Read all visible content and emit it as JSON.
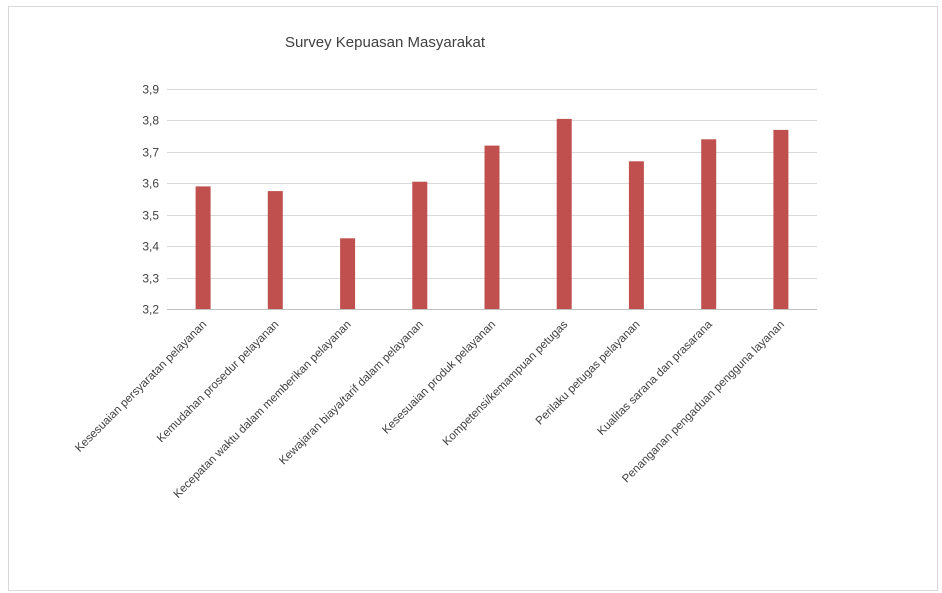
{
  "chart_data": {
    "type": "bar",
    "title": "Survey Kepuasan Masyarakat",
    "xlabel": "",
    "ylabel": "",
    "categories": [
      "Kesesuaian persyaratan pelayanan",
      "Kemudahan prosedur pelayanan",
      "Kecepatan waktu dalam memberikan pelayanan",
      "Kewajaran biaya/tarif dalam pelayanan",
      "Kesesuaian produk pelayanan",
      "Kompetensi/kemampuan petugas",
      "Perilaku petugas pelayanan",
      "Kualitas sarana dan prasarana",
      "Penanganan pengaduan pengguna layanan"
    ],
    "values": [
      3.59,
      3.575,
      3.425,
      3.605,
      3.72,
      3.805,
      3.67,
      3.74,
      3.77
    ],
    "ylim": [
      3.2,
      3.9
    ],
    "yticks": [
      "3,2",
      "3,3",
      "3,4",
      "3,5",
      "3,6",
      "3,7",
      "3,8",
      "3,9"
    ],
    "grid": true,
    "legend": "none",
    "bar_color": "#c0504d"
  }
}
